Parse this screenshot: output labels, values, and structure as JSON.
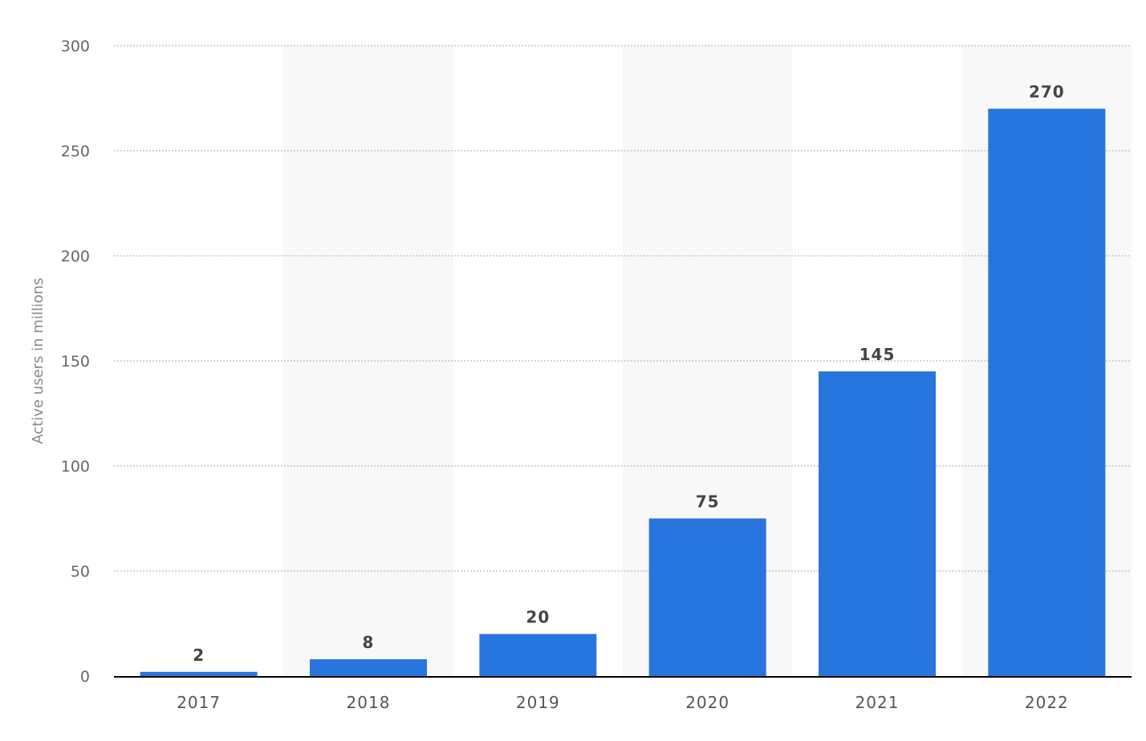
{
  "chart_data": {
    "type": "bar",
    "categories": [
      "2017",
      "2018",
      "2019",
      "2020",
      "2021",
      "2022"
    ],
    "values": [
      2,
      8,
      20,
      75,
      145,
      270
    ],
    "value_labels": [
      "2",
      "8",
      "20",
      "75",
      "145",
      "270"
    ],
    "title": "",
    "xlabel": "",
    "ylabel": "Active users in millions",
    "ylim": [
      0,
      300
    ],
    "yticks": [
      0,
      50,
      100,
      150,
      200,
      250,
      300
    ],
    "grid": true,
    "legend": "none",
    "colors": {
      "bar": "#2876dd",
      "band": "#f8f8f8",
      "grid": "#bbbbbb",
      "axis": "#000000"
    }
  }
}
